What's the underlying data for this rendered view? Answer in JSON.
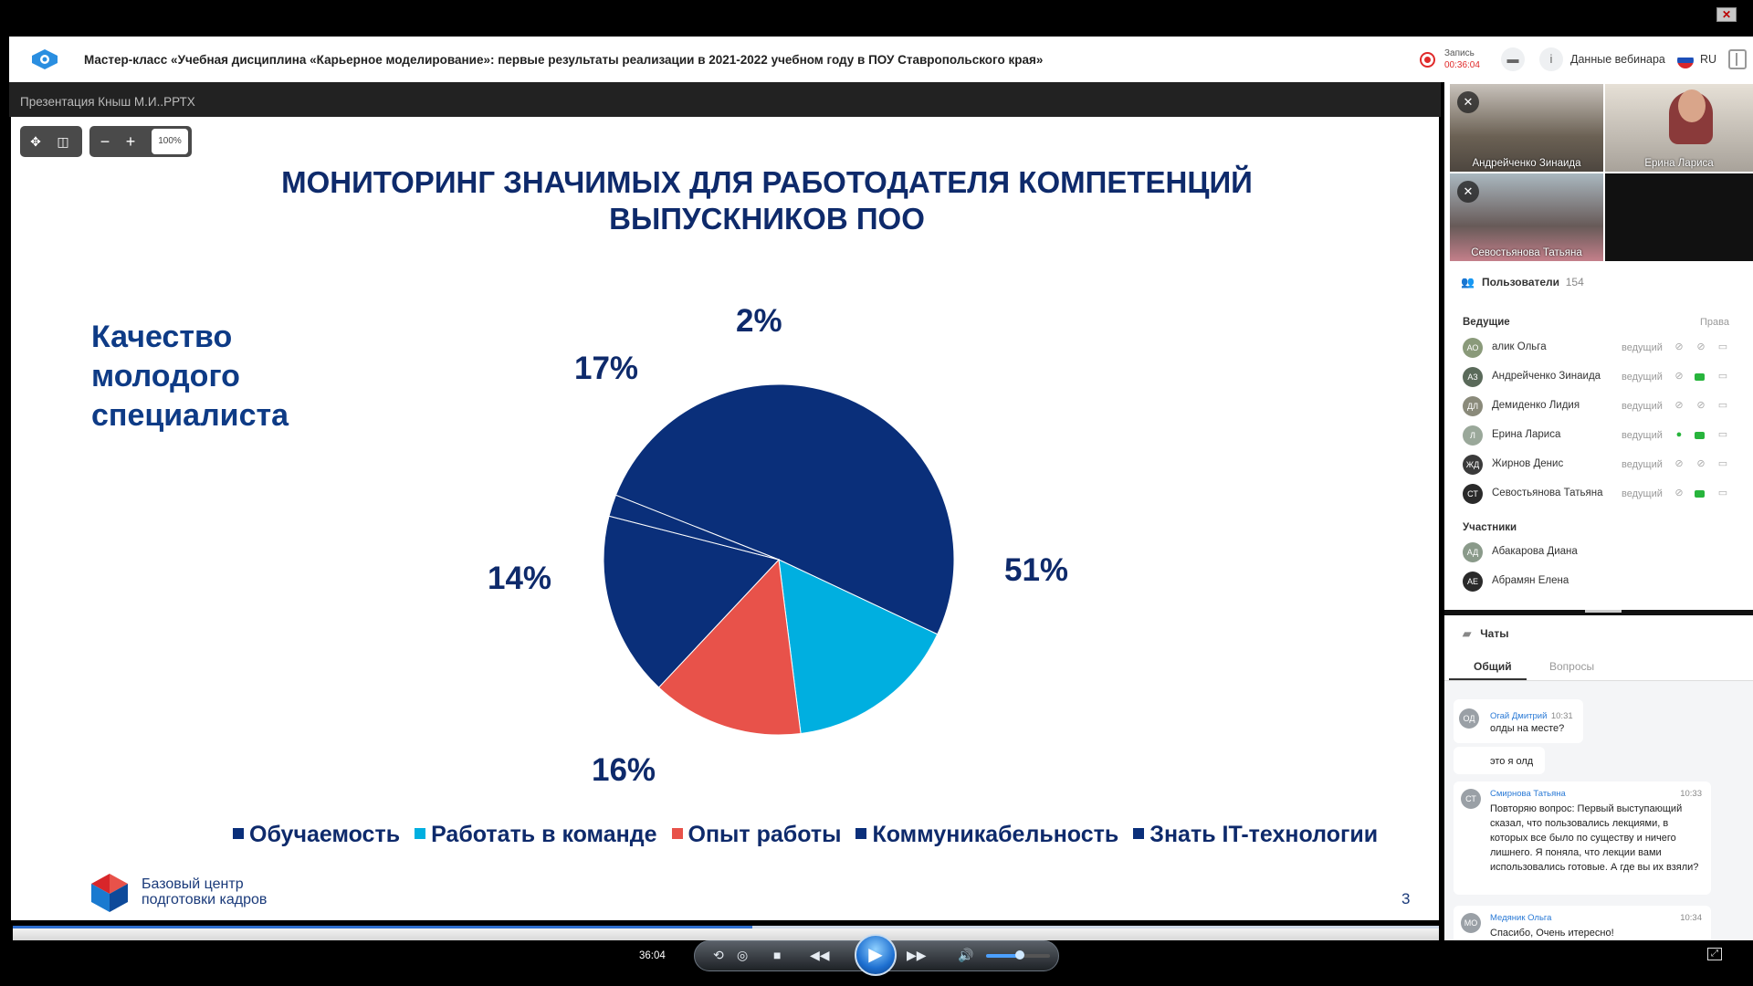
{
  "header": {
    "title": "Мастер-класс «Учебная дисциплина «Карьерное моделирование»: первые результаты реализации в 2021-2022 учебном году в ПОУ Ставропольского края»",
    "record_label": "Запись",
    "record_time": "00:36:04",
    "webinar_data": "Данные вебинара",
    "lang": "RU"
  },
  "presentation": {
    "title": "Презентация Кныш М.И..РРТХ",
    "zoom_level": "100%",
    "zoom_out": "−",
    "zoom_in": "+"
  },
  "slide": {
    "title_line1": "МОНИТОРИНГ ЗНАЧИМЫХ ДЛЯ РАБОТОДАТЕЛЯ КОМПЕТЕНЦИЙ",
    "title_line2": "ВЫПУСКНИКОВ ПОО",
    "side_line1": "Качество",
    "side_line2": "молодого",
    "side_line3": "специалиста",
    "org_line1": "Базовый центр",
    "org_line2": "подготовки кадров",
    "page_number": "3"
  },
  "chart_data": {
    "type": "pie",
    "categories": [
      "Обучаемость",
      "Работать в команде",
      "Опыт работы",
      "Коммуникабельность",
      "Знать IT-технологии"
    ],
    "values": [
      51,
      16,
      14,
      17,
      2
    ],
    "labels": [
      "51%",
      "16%",
      "14%",
      "17%",
      "2%"
    ],
    "colors": [
      "#0a2f7a",
      "#00afe0",
      "#e8524a",
      "#0a2f7a",
      "#0a2f7a"
    ],
    "legend_position": "bottom"
  },
  "videos": [
    {
      "name": "Андрейченко Зинаида",
      "muted": true
    },
    {
      "name": "Ерина Лариса",
      "muted": false
    },
    {
      "name": "Севостьянова Татьяна",
      "muted": true
    }
  ],
  "users": {
    "label": "Пользователи",
    "count": "154",
    "hosts_label": "Ведущие",
    "rights_label": "Права",
    "participants_label": "Участники",
    "hosts": [
      {
        "initials": "АО",
        "name": "алик Ольга",
        "role": "ведущий",
        "color": "#8a9a7a"
      },
      {
        "initials": "АЗ",
        "name": "Андрейченко Зинаида",
        "role": "ведущий",
        "color": "#5a6a5a"
      },
      {
        "initials": "ДЛ",
        "name": "Демиденко Лидия",
        "role": "ведущий",
        "color": "#8a8a7a"
      },
      {
        "initials": "Л",
        "name": "Ерина Лариса",
        "role": "ведущий",
        "color": "#9aa89a"
      },
      {
        "initials": "ЖД",
        "name": "Жирнов Денис",
        "role": "ведущий",
        "color": "#3a3a3a"
      },
      {
        "initials": "СТ",
        "name": "Севостьянова Татьяна",
        "role": "ведущий",
        "color": "#2a2a2a"
      }
    ],
    "participants": [
      {
        "initials": "АД",
        "name": "Абакарова Диана",
        "color": "#8a9a8a"
      },
      {
        "initials": "АЕ",
        "name": "Абрамян Елена",
        "color": "#2a2a2a"
      }
    ]
  },
  "chat": {
    "label": "Чаты",
    "tab_general": "Общий",
    "tab_questions": "Вопросы",
    "messages": [
      {
        "initials": "ОД",
        "author": "Огай Дмитрий",
        "time": "10:31",
        "text": "олды на месте?"
      },
      {
        "initials": "",
        "author": "",
        "time": "",
        "text": "это я олд"
      },
      {
        "initials": "СТ",
        "author": "Смирнова Татьяна",
        "time": "10:33",
        "text": "Повторяю вопрос: Первый выступающий сказал, что пользовались лекциями, в которых все было по существу и ничего лишнего. Я поняла, что лекции вами использовались готовые. А где вы их взяли?"
      },
      {
        "initials": "МО",
        "author": "Медяник Ольга",
        "time": "10:34",
        "text": "Спасибо, Очень итересно!"
      }
    ]
  },
  "player": {
    "time": "36:04"
  }
}
